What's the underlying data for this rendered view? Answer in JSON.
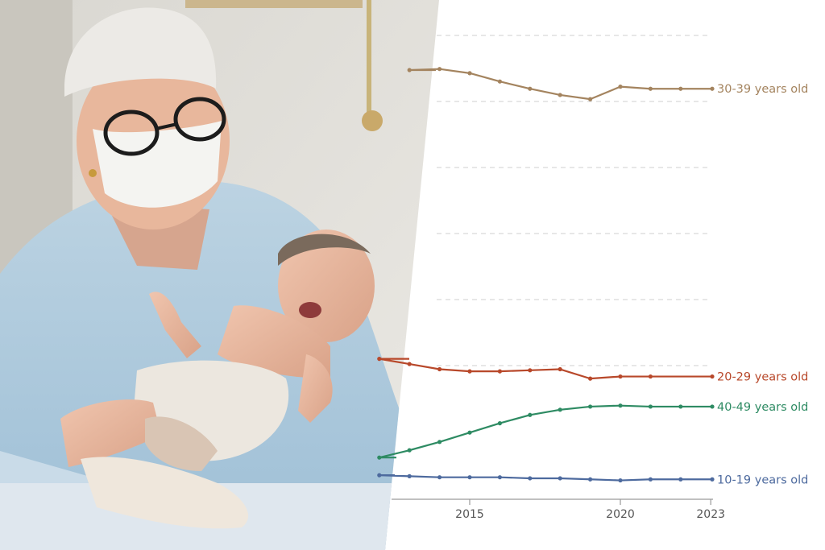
{
  "chart_data": {
    "type": "line",
    "title": "",
    "xlabel": "",
    "ylabel": "",
    "x_ticks": [
      "2015",
      "2020",
      "2023"
    ],
    "x": [
      2011,
      2012,
      2013,
      2014,
      2015,
      2016,
      2017,
      2018,
      2019,
      2020,
      2021,
      2022,
      2023
    ],
    "ylim": [
      0,
      70
    ],
    "grid": "horizontal dashed",
    "legend": "inline labels at line ends",
    "series": [
      {
        "name": "30-39 years old",
        "color": "#a4845f",
        "values": [
          null,
          null,
          65.0,
          65.1,
          64.7,
          63.9,
          63.2,
          62.6,
          62.2,
          63.4,
          63.2,
          63.2,
          null
        ]
      },
      {
        "name": "20-29 years old",
        "color": "#b8482a",
        "values": [
          null,
          37.2,
          36.7,
          36.2,
          36.0,
          36.0,
          36.1,
          36.2,
          35.3,
          35.5,
          35.5,
          null,
          null
        ]
      },
      {
        "name": "40-49 years old",
        "color": "#2e8b63",
        "values": [
          null,
          27.7,
          28.4,
          29.2,
          30.1,
          31.0,
          31.8,
          32.3,
          32.6,
          32.7,
          32.6,
          32.6,
          null
        ]
      },
      {
        "name": "10-19 years old",
        "color": "#4d6a9e",
        "values": [
          null,
          26.0,
          25.9,
          25.8,
          25.8,
          25.8,
          25.7,
          25.7,
          25.6,
          25.5,
          25.6,
          25.6,
          null
        ]
      }
    ]
  }
}
